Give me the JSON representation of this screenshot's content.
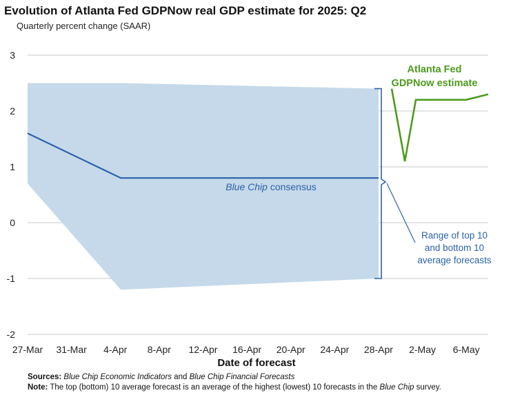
{
  "title": "Evolution of Atlanta Fed GDPNow real GDP estimate for 2025: Q2",
  "subtitle": "Quarterly percent change (SAAR)",
  "footer": {
    "sources_label": "Sources:",
    "sources_source1": "Blue Chip Economic Indicators",
    "sources_and": " and ",
    "sources_source2": "Blue Chip Financial Forecasts",
    "note_label": "Note:",
    "note_text_1": " The top (bottom) 10 average forecast is an average of the highest (lowest) 10 forecasts in the ",
    "note_italic": "Blue Chip",
    "note_text_2": " survey."
  },
  "chart_data": {
    "type": "line",
    "title": "Evolution of Atlanta Fed GDPNow real GDP estimate for 2025: Q2",
    "subtitle": "Quarterly percent change (SAAR)",
    "xlabel": "Date of forecast",
    "ylabel": "",
    "ylim": [
      -2,
      3
    ],
    "yticks": [
      3,
      2,
      1,
      0,
      -1,
      -2
    ],
    "ytick_labels": [
      "3",
      "2",
      "1",
      "0",
      "-1",
      "-2"
    ],
    "x_range_days": [
      0,
      42
    ],
    "xticks": [
      {
        "day": 0,
        "label": "27-Mar"
      },
      {
        "day": 4,
        "label": "31-Mar"
      },
      {
        "day": 8,
        "label": "4-Apr"
      },
      {
        "day": 12,
        "label": "8-Apr"
      },
      {
        "day": 16,
        "label": "12-Apr"
      },
      {
        "day": 20,
        "label": "16-Apr"
      },
      {
        "day": 24,
        "label": "20-Apr"
      },
      {
        "day": 28,
        "label": "24-Apr"
      },
      {
        "day": 32,
        "label": "28-Apr"
      },
      {
        "day": 36,
        "label": "2-May"
      },
      {
        "day": 40,
        "label": "6-May"
      }
    ],
    "grid": true,
    "range_band": {
      "name": "Range of top 10 and bottom 10 average forecasts",
      "x": [
        0,
        8.5,
        32
      ],
      "upper": [
        2.5,
        2.5,
        2.4
      ],
      "lower": [
        0.7,
        -1.2,
        -1.0
      ],
      "color": "#c5d9ea"
    },
    "series": [
      {
        "name": "Blue Chip consensus",
        "label_italic": "Blue Chip",
        "label_rest": " consensus",
        "color": "#2a62a8",
        "x": [
          0,
          8.5,
          32
        ],
        "values": [
          1.6,
          0.8,
          0.8
        ]
      },
      {
        "name": "Atlanta Fed GDPNow estimate",
        "label_line1": "Atlanta Fed",
        "label_line2": "GDPNow estimate",
        "color": "#4e9a1e",
        "x": [
          33.2,
          34.4,
          35.4,
          38.5,
          40,
          42
        ],
        "values": [
          2.4,
          1.1,
          2.2,
          2.2,
          2.2,
          2.3
        ]
      }
    ],
    "annotations": {
      "range_label": [
        "Range of top 10",
        "and bottom 10",
        "average forecasts"
      ]
    }
  }
}
